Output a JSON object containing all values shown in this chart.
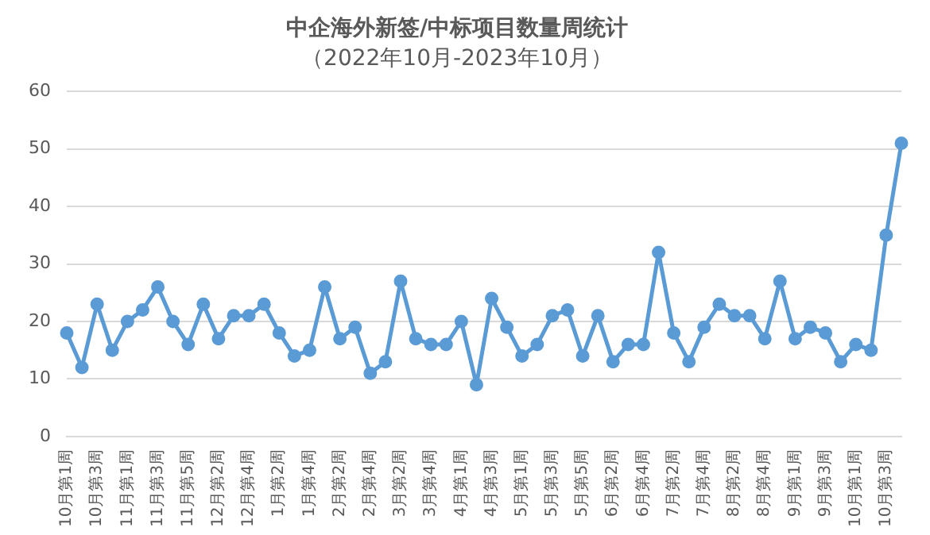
{
  "chart_data": {
    "type": "line",
    "title": "中企海外新签/中标项目数量周统计",
    "subtitle": "（2022年10月-2023年10月）",
    "categories": [
      "10月第1周",
      null,
      "10月第3周",
      null,
      "11月第1周",
      null,
      "11月第3周",
      null,
      "11月第5周",
      null,
      "12月第2周",
      null,
      "12月第4周",
      null,
      "1月第2周",
      null,
      "1月第4周",
      null,
      "2月第2周",
      null,
      "2月第4周",
      null,
      "3月第2周",
      null,
      "3月第4周",
      null,
      "4月第1周",
      null,
      "4月第3周",
      null,
      "5月第1周",
      null,
      "5月第3周",
      null,
      "5月第5周",
      null,
      "6月第2周",
      null,
      "6月第4周",
      null,
      "7月第2周",
      null,
      "7月第4周",
      null,
      "8月第2周",
      null,
      "8月第4周",
      null,
      "9月第1周",
      null,
      "9月第3周",
      null,
      "10月第1周",
      null,
      "10月第3周",
      null
    ],
    "series": [
      {
        "color": "#5b9bd5",
        "values": [
          18,
          12,
          23,
          15,
          20,
          22,
          26,
          20,
          16,
          23,
          17,
          21,
          21,
          23,
          18,
          14,
          15,
          26,
          17,
          19,
          11,
          13,
          27,
          17,
          16,
          16,
          20,
          9,
          24,
          19,
          14,
          16,
          21,
          22,
          14,
          21,
          13,
          16,
          16,
          32,
          18,
          13,
          19,
          23,
          21,
          21,
          17,
          27,
          17,
          19,
          18,
          13,
          16,
          15,
          35,
          51
        ]
      }
    ],
    "ylim": [
      0,
      60
    ],
    "yticks": [
      0,
      10,
      20,
      30,
      40,
      50,
      60
    ],
    "grid": "y",
    "legend": false,
    "marker": "circle",
    "line_style": "solid"
  }
}
